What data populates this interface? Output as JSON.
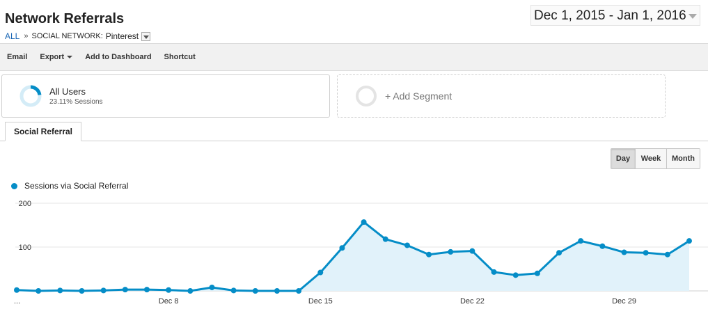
{
  "header": {
    "title": "Network Referrals",
    "breadcrumb": {
      "all": "ALL",
      "separator": "»",
      "dimension": "SOCIAL NETWORK:",
      "value": "Pinterest"
    },
    "date_range": "Dec 1, 2015 - Jan 1, 2016"
  },
  "toolbar": {
    "email": "Email",
    "export": "Export",
    "add_to_dashboard": "Add to Dashboard",
    "shortcut": "Shortcut"
  },
  "segments": {
    "all_users": {
      "name": "All Users",
      "subtitle": "23.11% Sessions",
      "percent": 23.11
    },
    "add_segment": "+ Add Segment"
  },
  "tabs": [
    {
      "label": "Social Referral"
    }
  ],
  "granularity": {
    "day": "Day",
    "week": "Week",
    "month": "Month",
    "active": "day"
  },
  "colors": {
    "accent": "#058dc7",
    "area_fill": "#e1f2fa",
    "link": "#1a66b5"
  },
  "chart_data": {
    "type": "area",
    "series": [
      {
        "name": "Sessions via Social Referral",
        "values": [
          2,
          0,
          1,
          0,
          1,
          3,
          3,
          2,
          0,
          8,
          1,
          0,
          0,
          0,
          42,
          98,
          157,
          118,
          104,
          83,
          89,
          91,
          43,
          36,
          40,
          87,
          114,
          102,
          88,
          87,
          83,
          114
        ]
      }
    ],
    "x_tick_labels": [
      {
        "index": 0,
        "label": "..."
      },
      {
        "index": 7,
        "label": "Dec 8"
      },
      {
        "index": 14,
        "label": "Dec 15"
      },
      {
        "index": 21,
        "label": "Dec 22"
      },
      {
        "index": 28,
        "label": "Dec 29"
      }
    ],
    "y_ticks": [
      100,
      200
    ],
    "ylim": [
      0,
      200
    ],
    "grid": true,
    "legend": "top-left"
  }
}
